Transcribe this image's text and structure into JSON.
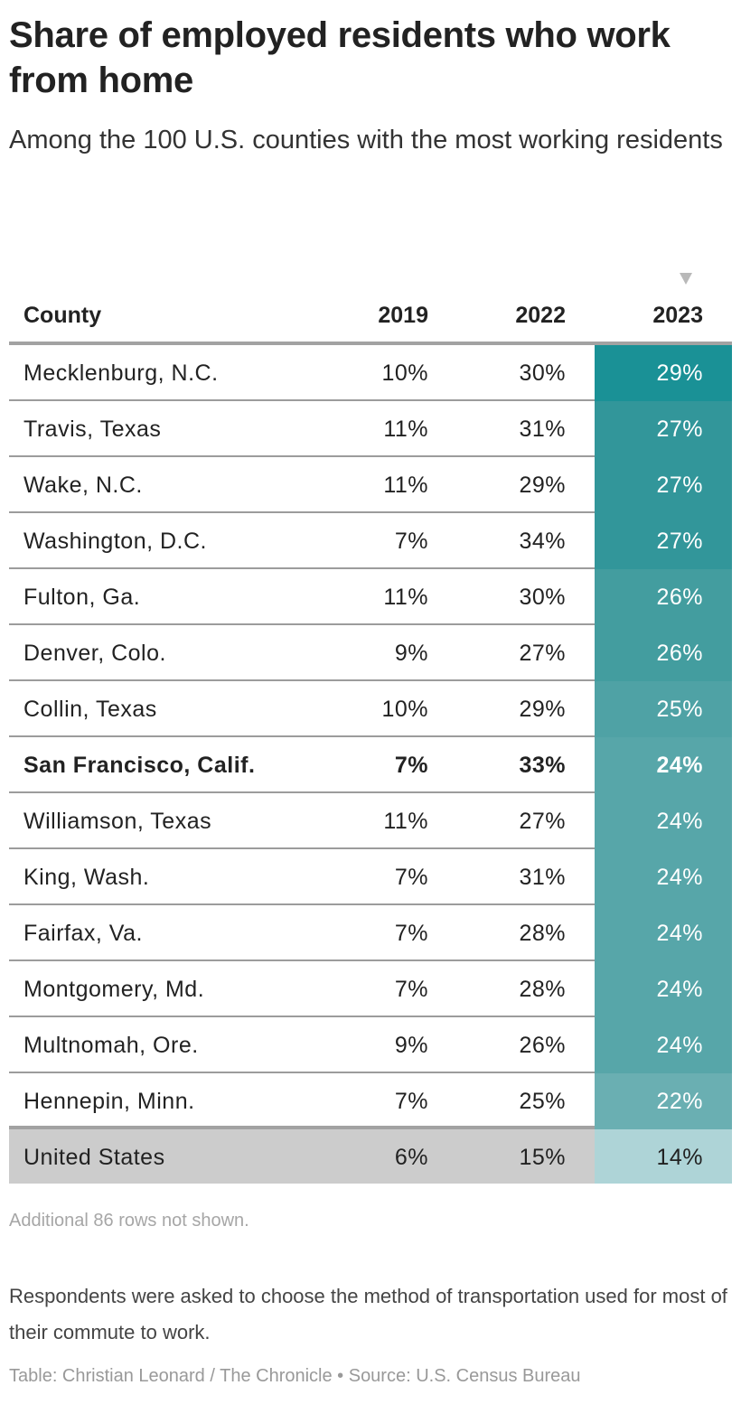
{
  "header": {
    "title": "Share of employed residents who work from home",
    "subtitle": "Among the 100 U.S. counties with the most working residents"
  },
  "table": {
    "sort_indicator": "sort-descending-icon",
    "columns": [
      "County",
      "2019",
      "2022",
      "2023"
    ],
    "rows": [
      {
        "county": "Mecklenburg, N.C.",
        "y2019": "10%",
        "y2022": "30%",
        "y2023": "29%",
        "color": "#1a9196",
        "bold": false
      },
      {
        "county": "Travis, Texas",
        "y2019": "11%",
        "y2022": "31%",
        "y2023": "27%",
        "color": "#32969a",
        "bold": false
      },
      {
        "county": "Wake, N.C.",
        "y2019": "11%",
        "y2022": "29%",
        "y2023": "27%",
        "color": "#32969a",
        "bold": false
      },
      {
        "county": "Washington, D.C.",
        "y2019": "7%",
        "y2022": "34%",
        "y2023": "27%",
        "color": "#32969a",
        "bold": false
      },
      {
        "county": "Fulton, Ga.",
        "y2019": "11%",
        "y2022": "30%",
        "y2023": "26%",
        "color": "#439d9f",
        "bold": false
      },
      {
        "county": "Denver, Colo.",
        "y2019": "9%",
        "y2022": "27%",
        "y2023": "26%",
        "color": "#439d9f",
        "bold": false
      },
      {
        "county": "Collin, Texas",
        "y2019": "10%",
        "y2022": "29%",
        "y2023": "25%",
        "color": "#4fa2a5",
        "bold": false
      },
      {
        "county": "San Francisco, Calif.",
        "y2019": "7%",
        "y2022": "33%",
        "y2023": "24%",
        "color": "#57a6a9",
        "bold": true
      },
      {
        "county": "Williamson, Texas",
        "y2019": "11%",
        "y2022": "27%",
        "y2023": "24%",
        "color": "#57a6a9",
        "bold": false
      },
      {
        "county": "King, Wash.",
        "y2019": "7%",
        "y2022": "31%",
        "y2023": "24%",
        "color": "#57a6a9",
        "bold": false
      },
      {
        "county": "Fairfax, Va.",
        "y2019": "7%",
        "y2022": "28%",
        "y2023": "24%",
        "color": "#57a6a9",
        "bold": false
      },
      {
        "county": "Montgomery, Md.",
        "y2019": "7%",
        "y2022": "28%",
        "y2023": "24%",
        "color": "#57a6a9",
        "bold": false
      },
      {
        "county": "Multnomah, Ore.",
        "y2019": "9%",
        "y2022": "26%",
        "y2023": "24%",
        "color": "#57a6a9",
        "bold": false
      },
      {
        "county": "Hennepin, Minn.",
        "y2019": "7%",
        "y2022": "25%",
        "y2023": "22%",
        "color": "#6aafb2",
        "bold": false
      }
    ],
    "total_row": {
      "county": "United States",
      "y2019": "6%",
      "y2022": "15%",
      "y2023": "14%",
      "color": "#aed4d7"
    }
  },
  "footer": {
    "more_rows": "Additional 86 rows not shown.",
    "notes": "Respondents were asked to choose the method of transportation used for most of their commute to work.",
    "source": "Table: Christian Leonard / The Chronicle • Source: U.S. Census Bureau"
  },
  "chart_data": {
    "type": "table",
    "title": "Share of employed residents who work from home",
    "subtitle": "Among the 100 U.S. counties with the most working residents",
    "columns": [
      "County",
      "2019",
      "2022",
      "2023"
    ],
    "sorted_by": "2023",
    "sort_order": "descending",
    "rows": [
      [
        "Mecklenburg, N.C.",
        10,
        30,
        29
      ],
      [
        "Travis, Texas",
        11,
        31,
        27
      ],
      [
        "Wake, N.C.",
        11,
        29,
        27
      ],
      [
        "Washington, D.C.",
        7,
        34,
        27
      ],
      [
        "Fulton, Ga.",
        11,
        30,
        26
      ],
      [
        "Denver, Colo.",
        9,
        27,
        26
      ],
      [
        "Collin, Texas",
        10,
        29,
        25
      ],
      [
        "San Francisco, Calif.",
        7,
        33,
        24
      ],
      [
        "Williamson, Texas",
        11,
        27,
        24
      ],
      [
        "King, Wash.",
        7,
        31,
        24
      ],
      [
        "Fairfax, Va.",
        7,
        28,
        24
      ],
      [
        "Montgomery, Md.",
        7,
        28,
        24
      ],
      [
        "Multnomah, Ore.",
        9,
        26,
        24
      ],
      [
        "Hennepin, Minn.",
        7,
        25,
        22
      ],
      [
        "United States",
        6,
        15,
        14
      ]
    ],
    "units": "percent",
    "highlighted_row": "San Francisco, Calif.",
    "heatmap_column": "2023",
    "heatmap_color_range": [
      "#aed4d7",
      "#1a9196"
    ],
    "annotations": [
      "Additional 86 rows not shown."
    ]
  }
}
